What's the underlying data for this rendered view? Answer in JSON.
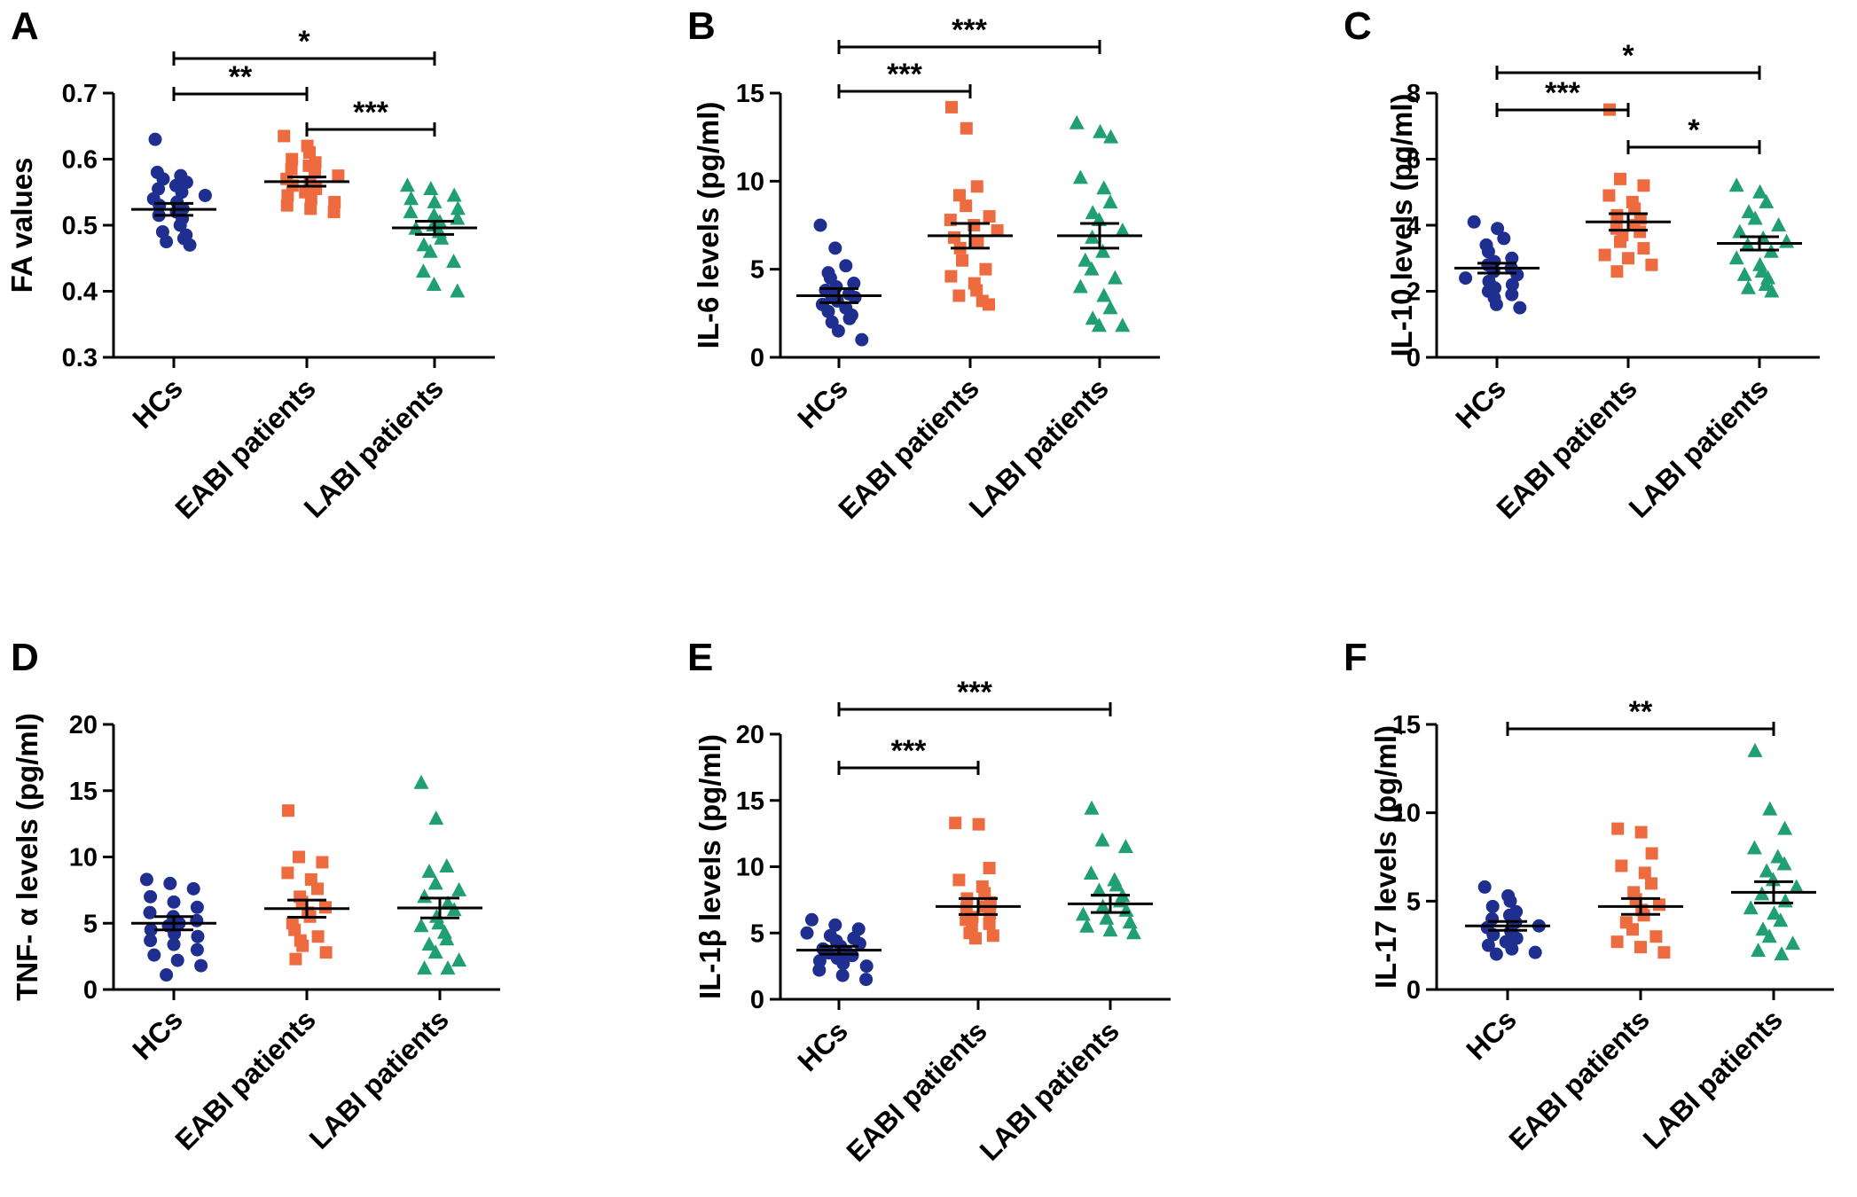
{
  "colors": {
    "HCs": "#1f2f8f",
    "EABI": "#ee6a3f",
    "LABI": "#1f9f73",
    "axis": "#000000"
  },
  "groups": [
    "HCs",
    "EABI patients",
    "LABI patients"
  ],
  "chart_data": [
    {
      "type": "scatter",
      "panel": "A",
      "ylabel": "FA values",
      "ylim": [
        0.3,
        0.7
      ],
      "ticks": [
        0.3,
        0.4,
        0.5,
        0.6,
        0.7
      ],
      "tick_labels": [
        "0.3",
        "0.4",
        "0.5",
        "0.6",
        "0.7"
      ],
      "categories": [
        "HCs",
        "EABI patients",
        "LABI patients"
      ],
      "series": [
        {
          "name": "HCs",
          "marker": "circle",
          "mean": 0.524,
          "sem": 0.009,
          "values": [
            0.63,
            0.58,
            0.575,
            0.57,
            0.565,
            0.56,
            0.555,
            0.55,
            0.545,
            0.54,
            0.535,
            0.53,
            0.525,
            0.52,
            0.515,
            0.51,
            0.5,
            0.49,
            0.485,
            0.48,
            0.475,
            0.47
          ]
        },
        {
          "name": "EABI patients",
          "marker": "square",
          "mean": 0.566,
          "sem": 0.007,
          "values": [
            0.635,
            0.62,
            0.61,
            0.6,
            0.595,
            0.59,
            0.585,
            0.58,
            0.575,
            0.57,
            0.565,
            0.56,
            0.555,
            0.55,
            0.545,
            0.54,
            0.535,
            0.53,
            0.525,
            0.52
          ]
        },
        {
          "name": "LABI patients",
          "marker": "triangle",
          "mean": 0.496,
          "sem": 0.01,
          "values": [
            0.56,
            0.555,
            0.545,
            0.54,
            0.535,
            0.525,
            0.52,
            0.515,
            0.51,
            0.505,
            0.5,
            0.495,
            0.49,
            0.48,
            0.47,
            0.46,
            0.445,
            0.43,
            0.41,
            0.4
          ]
        }
      ],
      "comparisons": [
        {
          "from": 0,
          "to": 2,
          "label": "*",
          "level": 2
        },
        {
          "from": 0,
          "to": 1,
          "label": "**",
          "level": 1
        },
        {
          "from": 1,
          "to": 2,
          "label": "***",
          "level": 0
        }
      ]
    },
    {
      "type": "scatter",
      "panel": "B",
      "ylabel": "IL-6 levels (pg/ml)",
      "ylim": [
        0,
        15
      ],
      "ticks": [
        0,
        5,
        10,
        15
      ],
      "tick_labels": [
        "0",
        "5",
        "10",
        "15"
      ],
      "categories": [
        "HCs",
        "EABI patients",
        "LABI patients"
      ],
      "series": [
        {
          "name": "HCs",
          "marker": "circle",
          "mean": 3.5,
          "sem": 0.4,
          "values": [
            7.5,
            6.2,
            5.2,
            4.8,
            4.5,
            4.2,
            4.0,
            3.8,
            3.6,
            3.5,
            3.4,
            3.2,
            3.0,
            2.8,
            2.6,
            2.4,
            2.2,
            2.0,
            1.5,
            1.0
          ]
        },
        {
          "name": "EABI patients",
          "marker": "square",
          "mean": 6.9,
          "sem": 0.7,
          "values": [
            14.2,
            13.0,
            9.7,
            9.2,
            8.6,
            8.0,
            7.8,
            7.5,
            7.2,
            6.8,
            6.5,
            6.2,
            5.5,
            5.0,
            4.6,
            4.2,
            3.8,
            3.5,
            3.2,
            3.0
          ]
        },
        {
          "name": "LABI patients",
          "marker": "triangle",
          "mean": 6.9,
          "sem": 0.7,
          "values": [
            13.3,
            12.8,
            12.5,
            10.2,
            9.6,
            8.8,
            8.2,
            7.8,
            7.2,
            6.8,
            6.0,
            5.5,
            5.0,
            4.5,
            4.0,
            3.5,
            2.8,
            2.2,
            1.8,
            1.8
          ]
        }
      ],
      "comparisons": [
        {
          "from": 0,
          "to": 2,
          "label": "***",
          "level": 1
        },
        {
          "from": 0,
          "to": 1,
          "label": "***",
          "level": 0
        }
      ]
    },
    {
      "type": "scatter",
      "panel": "C",
      "ylabel": "IL-10 levels (pg/ml)",
      "ylim": [
        0,
        8
      ],
      "ticks": [
        0,
        2,
        4,
        6,
        8
      ],
      "tick_labels": [
        "0",
        "2",
        "4",
        "6",
        "8"
      ],
      "categories": [
        "HCs",
        "EABI patients",
        "LABI patients"
      ],
      "series": [
        {
          "name": "HCs",
          "marker": "circle",
          "mean": 2.7,
          "sem": 0.15,
          "values": [
            4.1,
            3.9,
            3.6,
            3.4,
            3.2,
            3.0,
            2.9,
            2.8,
            2.7,
            2.6,
            2.5,
            2.4,
            2.3,
            2.2,
            2.1,
            2.0,
            1.9,
            1.8,
            1.6,
            1.5
          ]
        },
        {
          "name": "EABI patients",
          "marker": "square",
          "mean": 4.1,
          "sem": 0.25,
          "values": [
            7.5,
            5.4,
            5.2,
            4.9,
            4.7,
            4.5,
            4.3,
            4.2,
            4.0,
            3.9,
            3.8,
            3.7,
            3.5,
            3.3,
            3.1,
            3.0,
            2.8,
            2.6
          ]
        },
        {
          "name": "LABI patients",
          "marker": "triangle",
          "mean": 3.45,
          "sem": 0.2,
          "values": [
            5.2,
            5.0,
            4.7,
            4.4,
            4.2,
            4.0,
            3.8,
            3.6,
            3.5,
            3.4,
            3.2,
            3.0,
            2.8,
            2.6,
            2.5,
            2.4,
            2.2,
            2.1,
            2.0
          ]
        }
      ],
      "comparisons": [
        {
          "from": 0,
          "to": 2,
          "label": "*",
          "level": 2
        },
        {
          "from": 0,
          "to": 1,
          "label": "***",
          "level": 1
        },
        {
          "from": 1,
          "to": 2,
          "label": "*",
          "level": 0
        }
      ]
    },
    {
      "type": "scatter",
      "panel": "D",
      "ylabel": "TNF- α  levels (pg/ml)",
      "ylim": [
        0,
        20
      ],
      "ticks": [
        0,
        5,
        10,
        15,
        20
      ],
      "tick_labels": [
        "0",
        "5",
        "10",
        "15",
        "20"
      ],
      "categories": [
        "HCs",
        "EABI patients",
        "LABI patients"
      ],
      "series": [
        {
          "name": "HCs",
          "marker": "circle",
          "mean": 5.0,
          "sem": 0.5,
          "values": [
            8.3,
            8.0,
            7.6,
            7.0,
            6.6,
            6.2,
            5.8,
            5.5,
            5.2,
            5.0,
            4.8,
            4.5,
            4.2,
            4.0,
            3.7,
            3.4,
            3.0,
            2.6,
            2.2,
            1.8,
            1.1
          ]
        },
        {
          "name": "EABI patients",
          "marker": "square",
          "mean": 6.1,
          "sem": 0.65,
          "values": [
            13.5,
            10.0,
            9.6,
            8.8,
            8.3,
            7.6,
            7.0,
            6.6,
            6.2,
            5.8,
            5.5,
            5.0,
            4.5,
            4.0,
            3.7,
            3.3,
            2.8,
            2.3
          ]
        },
        {
          "name": "LABI patients",
          "marker": "triangle",
          "mean": 6.15,
          "sem": 0.75,
          "values": [
            15.6,
            12.9,
            9.3,
            8.9,
            8.0,
            7.5,
            7.0,
            6.5,
            6.0,
            5.5,
            5.0,
            4.8,
            4.3,
            3.8,
            3.4,
            2.8,
            2.2,
            1.6,
            1.6
          ]
        }
      ],
      "comparisons": []
    },
    {
      "type": "scatter",
      "panel": "E",
      "ylabel": "IL-1β  levels (pg/ml)",
      "ylim": [
        0,
        20
      ],
      "ticks": [
        0,
        5,
        10,
        15,
        20
      ],
      "tick_labels": [
        "0",
        "5",
        "10",
        "15",
        "20"
      ],
      "categories": [
        "HCs",
        "EABI patients",
        "LABI patients"
      ],
      "series": [
        {
          "name": "HCs",
          "marker": "circle",
          "mean": 3.7,
          "sem": 0.3,
          "values": [
            6.0,
            5.6,
            5.3,
            5.0,
            4.8,
            4.6,
            4.4,
            4.2,
            4.0,
            3.8,
            3.6,
            3.5,
            3.3,
            3.1,
            2.9,
            2.7,
            2.5,
            2.2,
            1.8,
            1.5
          ]
        },
        {
          "name": "EABI patients",
          "marker": "square",
          "mean": 7.0,
          "sem": 0.6,
          "values": [
            13.3,
            13.2,
            9.9,
            9.0,
            8.5,
            8.0,
            7.6,
            7.3,
            7.0,
            6.8,
            6.5,
            6.2,
            6.0,
            5.7,
            5.4,
            5.0,
            4.8,
            4.6
          ]
        },
        {
          "name": "LABI patients",
          "marker": "triangle",
          "mean": 7.2,
          "sem": 0.65,
          "values": [
            14.4,
            12.0,
            11.5,
            9.5,
            9.0,
            8.6,
            8.2,
            7.8,
            7.4,
            7.0,
            6.7,
            6.4,
            6.1,
            5.8,
            5.5,
            5.2,
            5.0
          ]
        }
      ],
      "comparisons": [
        {
          "from": 0,
          "to": 2,
          "label": "***",
          "level": 1
        },
        {
          "from": 0,
          "to": 1,
          "label": "***",
          "level": 0
        }
      ]
    },
    {
      "type": "scatter",
      "panel": "F",
      "ylabel": "IL-17 levels (pg/ml)",
      "ylim": [
        0,
        15
      ],
      "ticks": [
        0,
        5,
        10,
        15
      ],
      "tick_labels": [
        "0",
        "5",
        "10",
        "15"
      ],
      "categories": [
        "HCs",
        "EABI patients",
        "LABI patients"
      ],
      "series": [
        {
          "name": "HCs",
          "marker": "circle",
          "mean": 3.6,
          "sem": 0.25,
          "values": [
            5.8,
            5.3,
            5.0,
            4.7,
            4.4,
            4.2,
            4.0,
            3.8,
            3.6,
            3.5,
            3.3,
            3.1,
            2.9,
            2.7,
            2.5,
            2.3,
            2.1,
            2.0
          ]
        },
        {
          "name": "EABI patients",
          "marker": "square",
          "mean": 4.7,
          "sem": 0.45,
          "values": [
            9.1,
            8.9,
            7.7,
            7.0,
            6.6,
            6.0,
            5.5,
            5.1,
            4.8,
            4.5,
            4.2,
            3.8,
            3.4,
            3.0,
            2.7,
            2.4,
            2.1
          ]
        },
        {
          "name": "LABI patients",
          "marker": "triangle",
          "mean": 5.5,
          "sem": 0.6,
          "values": [
            13.5,
            10.2,
            9.1,
            8.0,
            7.5,
            7.1,
            6.7,
            6.2,
            5.8,
            5.4,
            5.0,
            4.6,
            4.3,
            3.9,
            3.4,
            3.0,
            2.6,
            2.2,
            2.0
          ]
        }
      ],
      "comparisons": [
        {
          "from": 0,
          "to": 2,
          "label": "**",
          "level": 0
        }
      ]
    }
  ]
}
